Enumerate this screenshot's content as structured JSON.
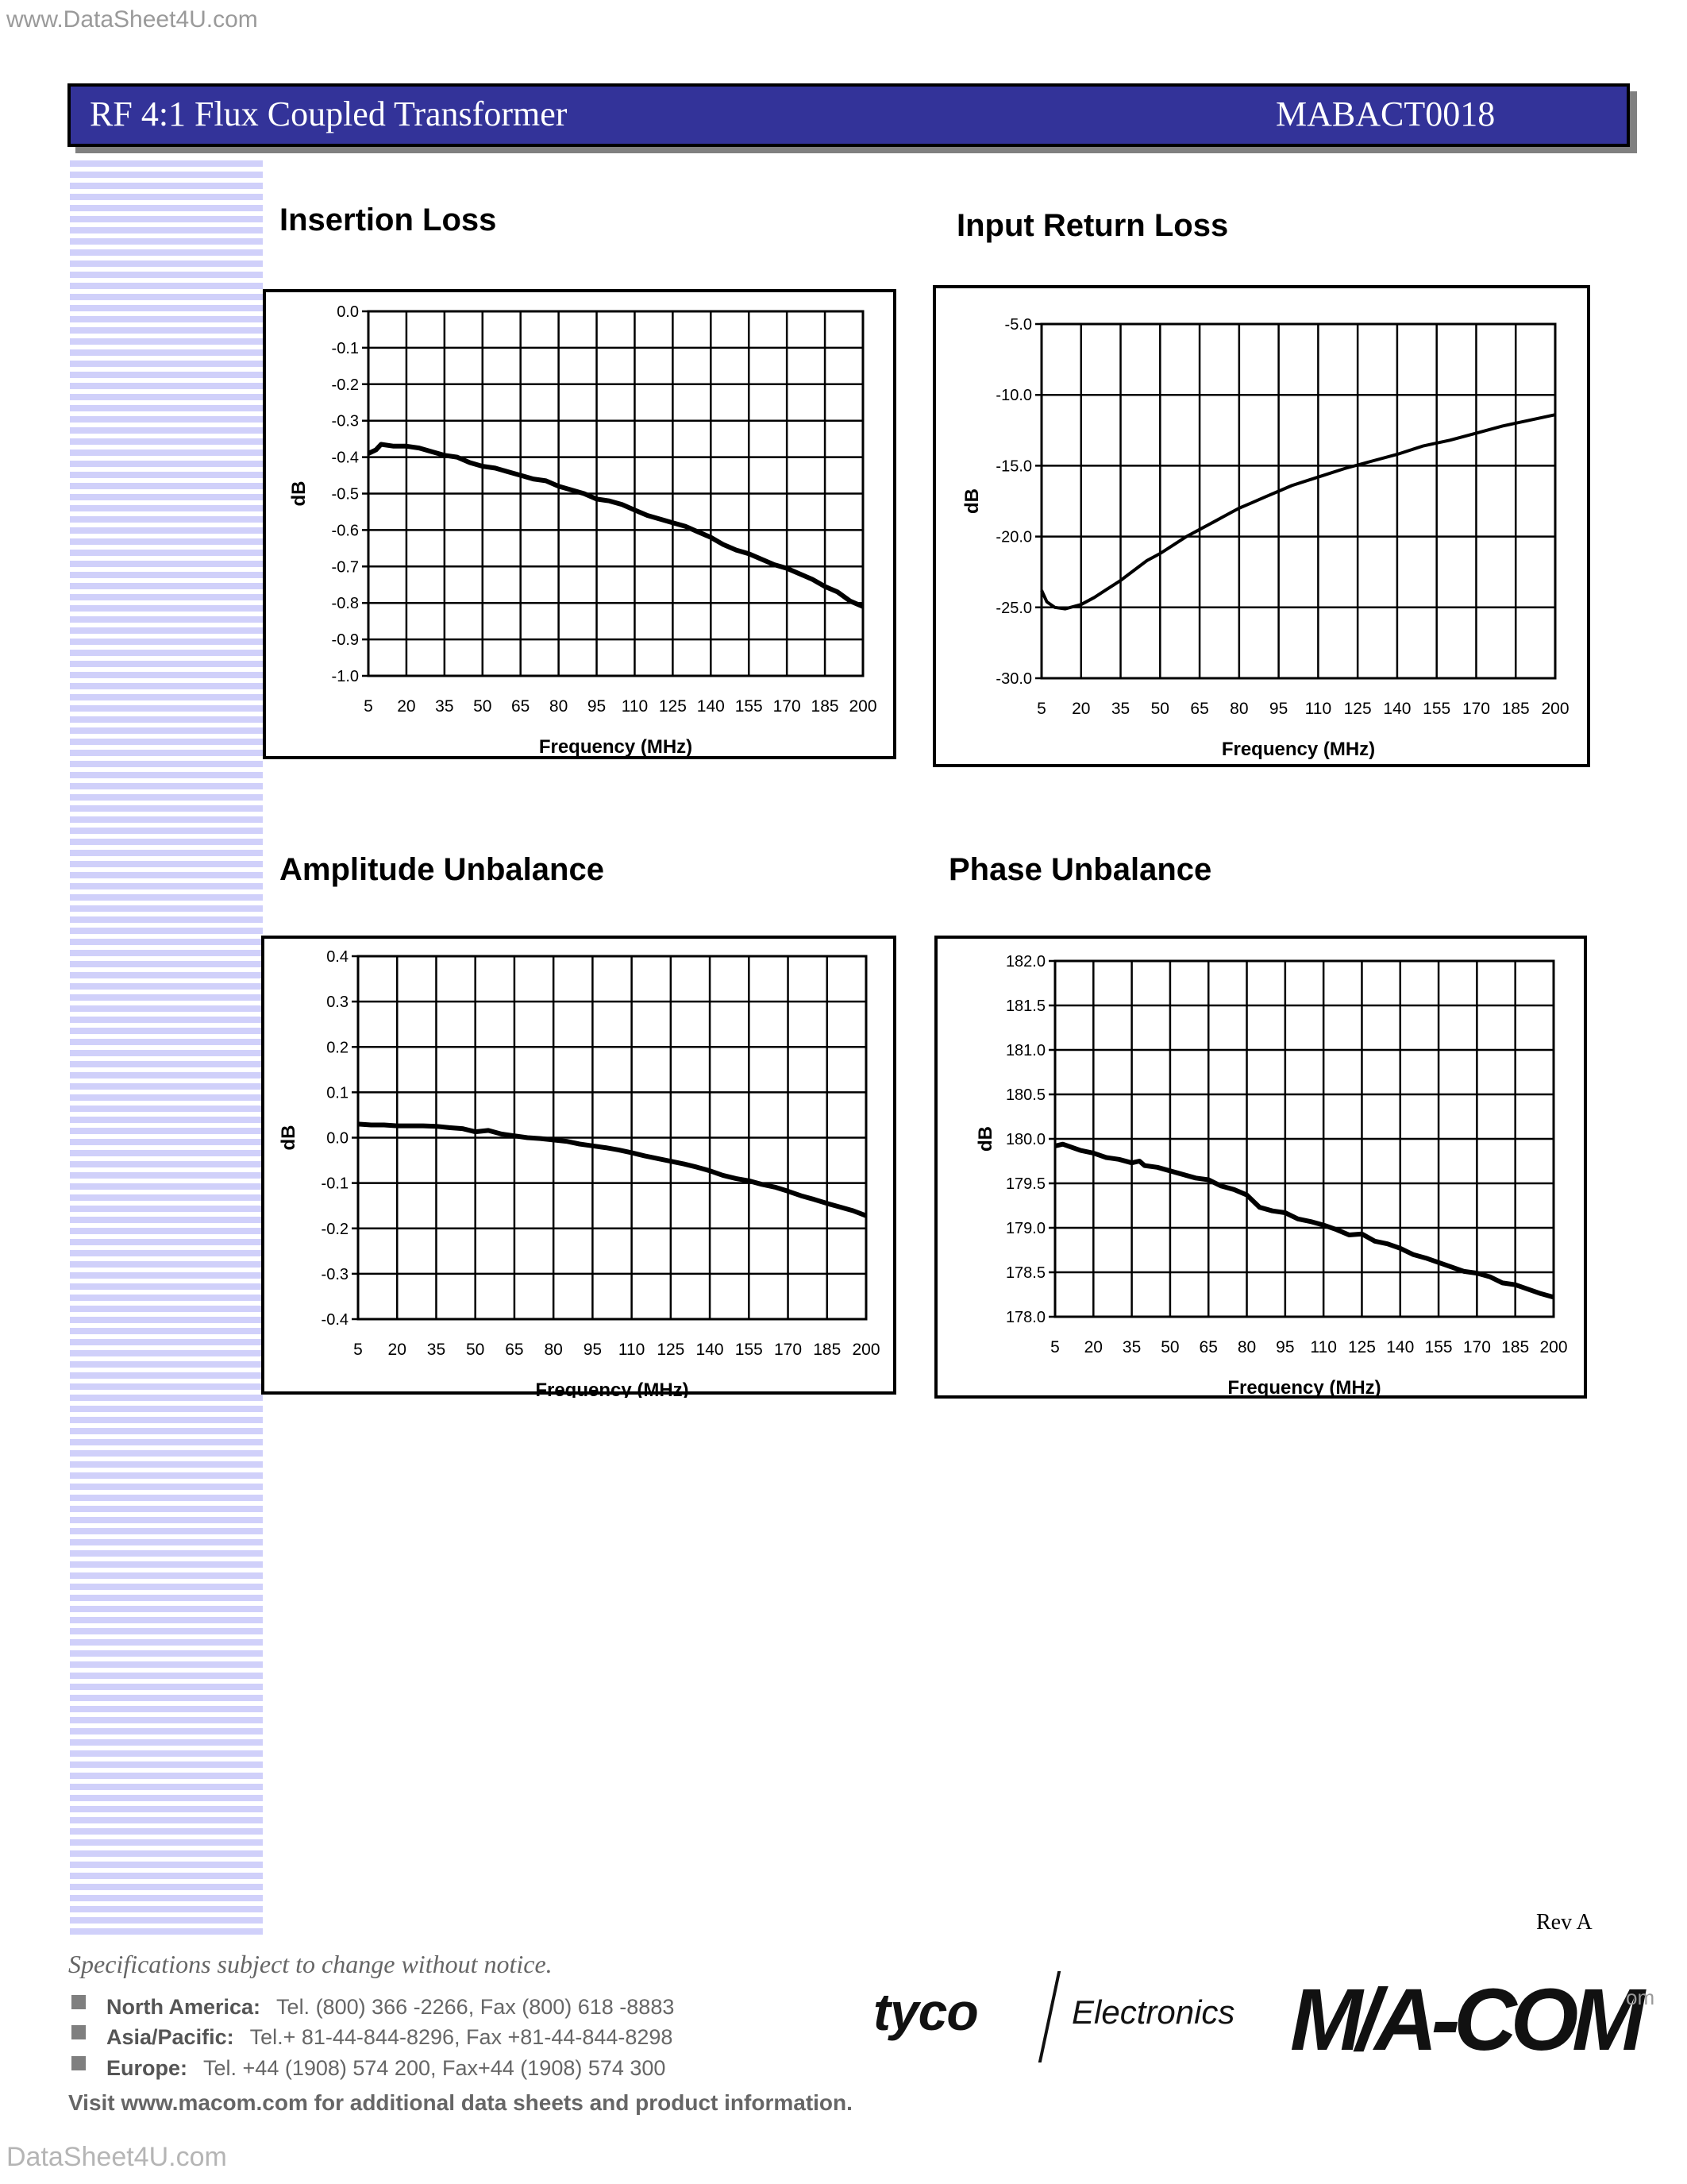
{
  "watermark": {
    "top": "www.DataSheet4U.com",
    "bottom": "DataSheet4U.com"
  },
  "header": {
    "title": "RF 4:1 Flux Coupled Transformer",
    "part_number": "MABACT0018",
    "bar_color": "#333399"
  },
  "charts": [
    {
      "title": "Insertion Loss",
      "ylabel": "dB",
      "xlabel": "Frequency (MHz)"
    },
    {
      "title": "Input Return Loss",
      "ylabel": "dB",
      "xlabel": "Frequency (MHz)"
    },
    {
      "title": "Amplitude Unbalance",
      "ylabel": "dB",
      "xlabel": "Frequency (MHz)"
    },
    {
      "title": "Phase Unbalance",
      "ylabel": "dB",
      "xlabel": "Frequency (MHz)"
    }
  ],
  "chart_data": [
    {
      "type": "line",
      "title": "Insertion Loss",
      "xlabel": "Frequency (MHz)",
      "ylabel": "dB",
      "x_ticks": [
        5,
        20,
        35,
        50,
        65,
        80,
        95,
        110,
        125,
        140,
        155,
        170,
        185,
        200
      ],
      "y_ticks": [
        "0.0",
        "-0.1",
        "-0.2",
        "-0.3",
        "-0.4",
        "-0.5",
        "-0.6",
        "-0.7",
        "-0.8",
        "-0.9",
        "-1.0"
      ],
      "xlim": [
        5,
        200
      ],
      "ylim": [
        -1.0,
        0.0
      ],
      "grid": true,
      "series": [
        {
          "name": "Insertion Loss",
          "x": [
            5,
            8,
            10,
            15,
            20,
            25,
            30,
            35,
            40,
            45,
            50,
            55,
            60,
            65,
            70,
            75,
            80,
            85,
            90,
            95,
            100,
            105,
            110,
            115,
            120,
            125,
            130,
            135,
            140,
            145,
            150,
            155,
            160,
            165,
            170,
            175,
            180,
            185,
            190,
            195,
            200
          ],
          "y": [
            -0.39,
            -0.38,
            -0.365,
            -0.37,
            -0.37,
            -0.375,
            -0.385,
            -0.395,
            -0.4,
            -0.415,
            -0.425,
            -0.43,
            -0.44,
            -0.45,
            -0.46,
            -0.465,
            -0.48,
            -0.49,
            -0.5,
            -0.515,
            -0.52,
            -0.53,
            -0.545,
            -0.56,
            -0.57,
            -0.58,
            -0.59,
            -0.605,
            -0.62,
            -0.64,
            -0.655,
            -0.665,
            -0.68,
            -0.695,
            -0.705,
            -0.72,
            -0.735,
            -0.755,
            -0.77,
            -0.795,
            -0.81
          ]
        }
      ]
    },
    {
      "type": "line",
      "title": "Input Return Loss",
      "xlabel": "Frequency (MHz)",
      "ylabel": "dB",
      "x_ticks": [
        5,
        20,
        35,
        50,
        65,
        80,
        95,
        110,
        125,
        140,
        155,
        170,
        185,
        200
      ],
      "y_ticks": [
        "-5.0",
        "-10.0",
        "-15.0",
        "-20.0",
        "-25.0",
        "-30.0"
      ],
      "xlim": [
        5,
        200
      ],
      "ylim": [
        -30.0,
        -5.0
      ],
      "grid": true,
      "series": [
        {
          "name": "Input Return Loss",
          "x": [
            5,
            7,
            10,
            14,
            20,
            25,
            30,
            35,
            40,
            45,
            50,
            55,
            60,
            65,
            70,
            75,
            80,
            85,
            90,
            95,
            100,
            110,
            120,
            130,
            140,
            150,
            160,
            170,
            180,
            190,
            200
          ],
          "y": [
            -23.8,
            -24.6,
            -25.0,
            -25.1,
            -24.8,
            -24.3,
            -23.7,
            -23.1,
            -22.4,
            -21.7,
            -21.2,
            -20.6,
            -20.0,
            -19.5,
            -19.0,
            -18.5,
            -18.0,
            -17.6,
            -17.2,
            -16.8,
            -16.4,
            -15.8,
            -15.2,
            -14.7,
            -14.2,
            -13.6,
            -13.2,
            -12.7,
            -12.2,
            -11.8,
            -11.4
          ]
        }
      ]
    },
    {
      "type": "line",
      "title": "Amplitude Unbalance",
      "xlabel": "Frequency (MHz)",
      "ylabel": "dB",
      "x_ticks": [
        5,
        20,
        35,
        50,
        65,
        80,
        95,
        110,
        125,
        140,
        155,
        170,
        185,
        200
      ],
      "y_ticks": [
        "0.4",
        "0.3",
        "0.2",
        "0.1",
        "0.0",
        "-0.1",
        "-0.2",
        "-0.3",
        "-0.4"
      ],
      "xlim": [
        5,
        200
      ],
      "ylim": [
        -0.4,
        0.4
      ],
      "grid": true,
      "series": [
        {
          "name": "Amplitude Unbalance",
          "x": [
            5,
            10,
            15,
            20,
            25,
            30,
            35,
            40,
            45,
            50,
            55,
            60,
            65,
            70,
            75,
            80,
            85,
            90,
            95,
            100,
            105,
            110,
            115,
            120,
            125,
            130,
            135,
            140,
            145,
            150,
            155,
            160,
            165,
            170,
            175,
            180,
            185,
            190,
            195,
            200
          ],
          "y": [
            0.03,
            0.028,
            0.028,
            0.026,
            0.026,
            0.026,
            0.025,
            0.022,
            0.02,
            0.013,
            0.016,
            0.008,
            0.004,
            0.0,
            -0.002,
            -0.005,
            -0.008,
            -0.014,
            -0.018,
            -0.022,
            -0.027,
            -0.033,
            -0.04,
            -0.046,
            -0.052,
            -0.058,
            -0.065,
            -0.073,
            -0.083,
            -0.09,
            -0.095,
            -0.103,
            -0.109,
            -0.118,
            -0.128,
            -0.136,
            -0.145,
            -0.153,
            -0.161,
            -0.172
          ]
        }
      ]
    },
    {
      "type": "line",
      "title": "Phase Unbalance",
      "xlabel": "Frequency (MHz)",
      "ylabel": "dB",
      "x_ticks": [
        5,
        20,
        35,
        50,
        65,
        80,
        95,
        110,
        125,
        140,
        155,
        170,
        185,
        200
      ],
      "y_ticks": [
        "182.0",
        "181.5",
        "181.0",
        "180.5",
        "180.0",
        "179.5",
        "179.0",
        "178.5",
        "178.0"
      ],
      "xlim": [
        5,
        200
      ],
      "ylim": [
        178.0,
        182.0
      ],
      "grid": true,
      "series": [
        {
          "name": "Phase Unbalance",
          "x": [
            5,
            8,
            15,
            20,
            25,
            30,
            35,
            38,
            40,
            45,
            50,
            55,
            60,
            65,
            70,
            75,
            80,
            85,
            90,
            95,
            100,
            105,
            110,
            115,
            120,
            125,
            130,
            135,
            140,
            145,
            150,
            155,
            160,
            165,
            170,
            175,
            180,
            185,
            190,
            195,
            200
          ],
          "y": [
            179.92,
            179.94,
            179.87,
            179.84,
            179.79,
            179.77,
            179.73,
            179.75,
            179.7,
            179.68,
            179.64,
            179.6,
            179.56,
            179.54,
            179.47,
            179.43,
            179.37,
            179.23,
            179.19,
            179.17,
            179.1,
            179.07,
            179.03,
            178.98,
            178.92,
            178.93,
            178.85,
            178.82,
            178.77,
            178.7,
            178.66,
            178.61,
            178.56,
            178.51,
            178.49,
            178.45,
            178.38,
            178.36,
            178.31,
            178.26,
            178.22
          ]
        }
      ]
    }
  ],
  "footer": {
    "rev": "Rev A",
    "spec_note": "Specifications subject to change without notice.",
    "contacts": [
      {
        "region": "North America:",
        "details": "Tel. (800) 366 -2266,   Fax (800) 618 -8883"
      },
      {
        "region": "Asia/Pacific:",
        "details": "Tel.+ 81-44-844-8296,  Fax +81-44-844-8298"
      },
      {
        "region": "Europe:",
        "details": "Tel. +44 (1908) 574 200,    Fax+44 (1908) 574 300"
      }
    ],
    "visit": "Visit www.macom.com for   additional data sheets and product information.",
    "logo_tyco": "tyco",
    "logo_electronics": "Electronics",
    "logo_macom": "M/A-COM",
    "logo_macom_suffix": "om"
  }
}
